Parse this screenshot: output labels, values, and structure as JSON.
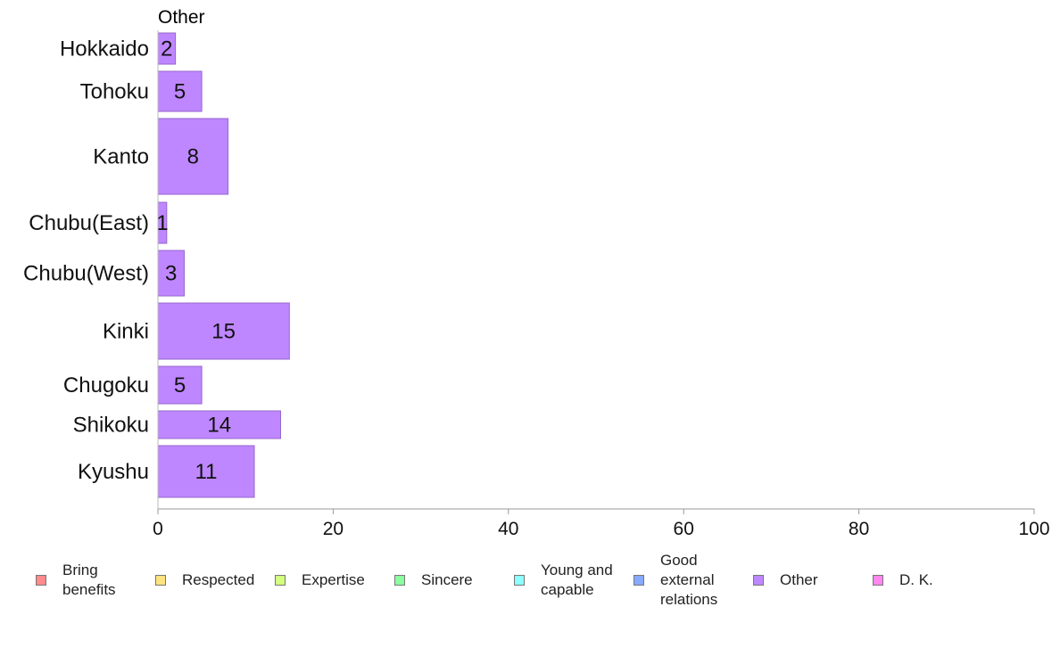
{
  "chart_data": {
    "type": "bar",
    "orientation": "horizontal",
    "title": "Other",
    "categories": [
      "Hokkaido",
      "Tohoku",
      "Kanto",
      "Chubu(East)",
      "Chubu(West)",
      "Kinki",
      "Chugoku",
      "Shikoku",
      "Kyushu"
    ],
    "series": [
      {
        "name": "Other",
        "values": [
          2,
          5,
          8,
          1,
          3,
          15,
          5,
          14,
          11
        ],
        "color": "#bf87ff"
      }
    ],
    "data_labels": [
      "2",
      "5",
      "8",
      "1",
      "3",
      "15",
      "5",
      "14",
      "11"
    ],
    "xlim": [
      0,
      100
    ],
    "x_ticks": [
      "0",
      "20",
      "40",
      "60",
      "80",
      "100"
    ],
    "grid": false,
    "legend_position": "bottom",
    "legend": [
      {
        "label": "Bring\nbenefits",
        "color": "#ff8b8b"
      },
      {
        "label": "Respected",
        "color": "#ffe37f"
      },
      {
        "label": "Expertise",
        "color": "#d3ff7f"
      },
      {
        "label": "Sincere",
        "color": "#8bff9f"
      },
      {
        "label": "Young and\ncapable",
        "color": "#8bffff"
      },
      {
        "label": "Good\nexternal\nrelations",
        "color": "#85aaff"
      },
      {
        "label": "Other",
        "color": "#bf87ff"
      },
      {
        "label": "D. K.",
        "color": "#ff87ef"
      }
    ]
  }
}
